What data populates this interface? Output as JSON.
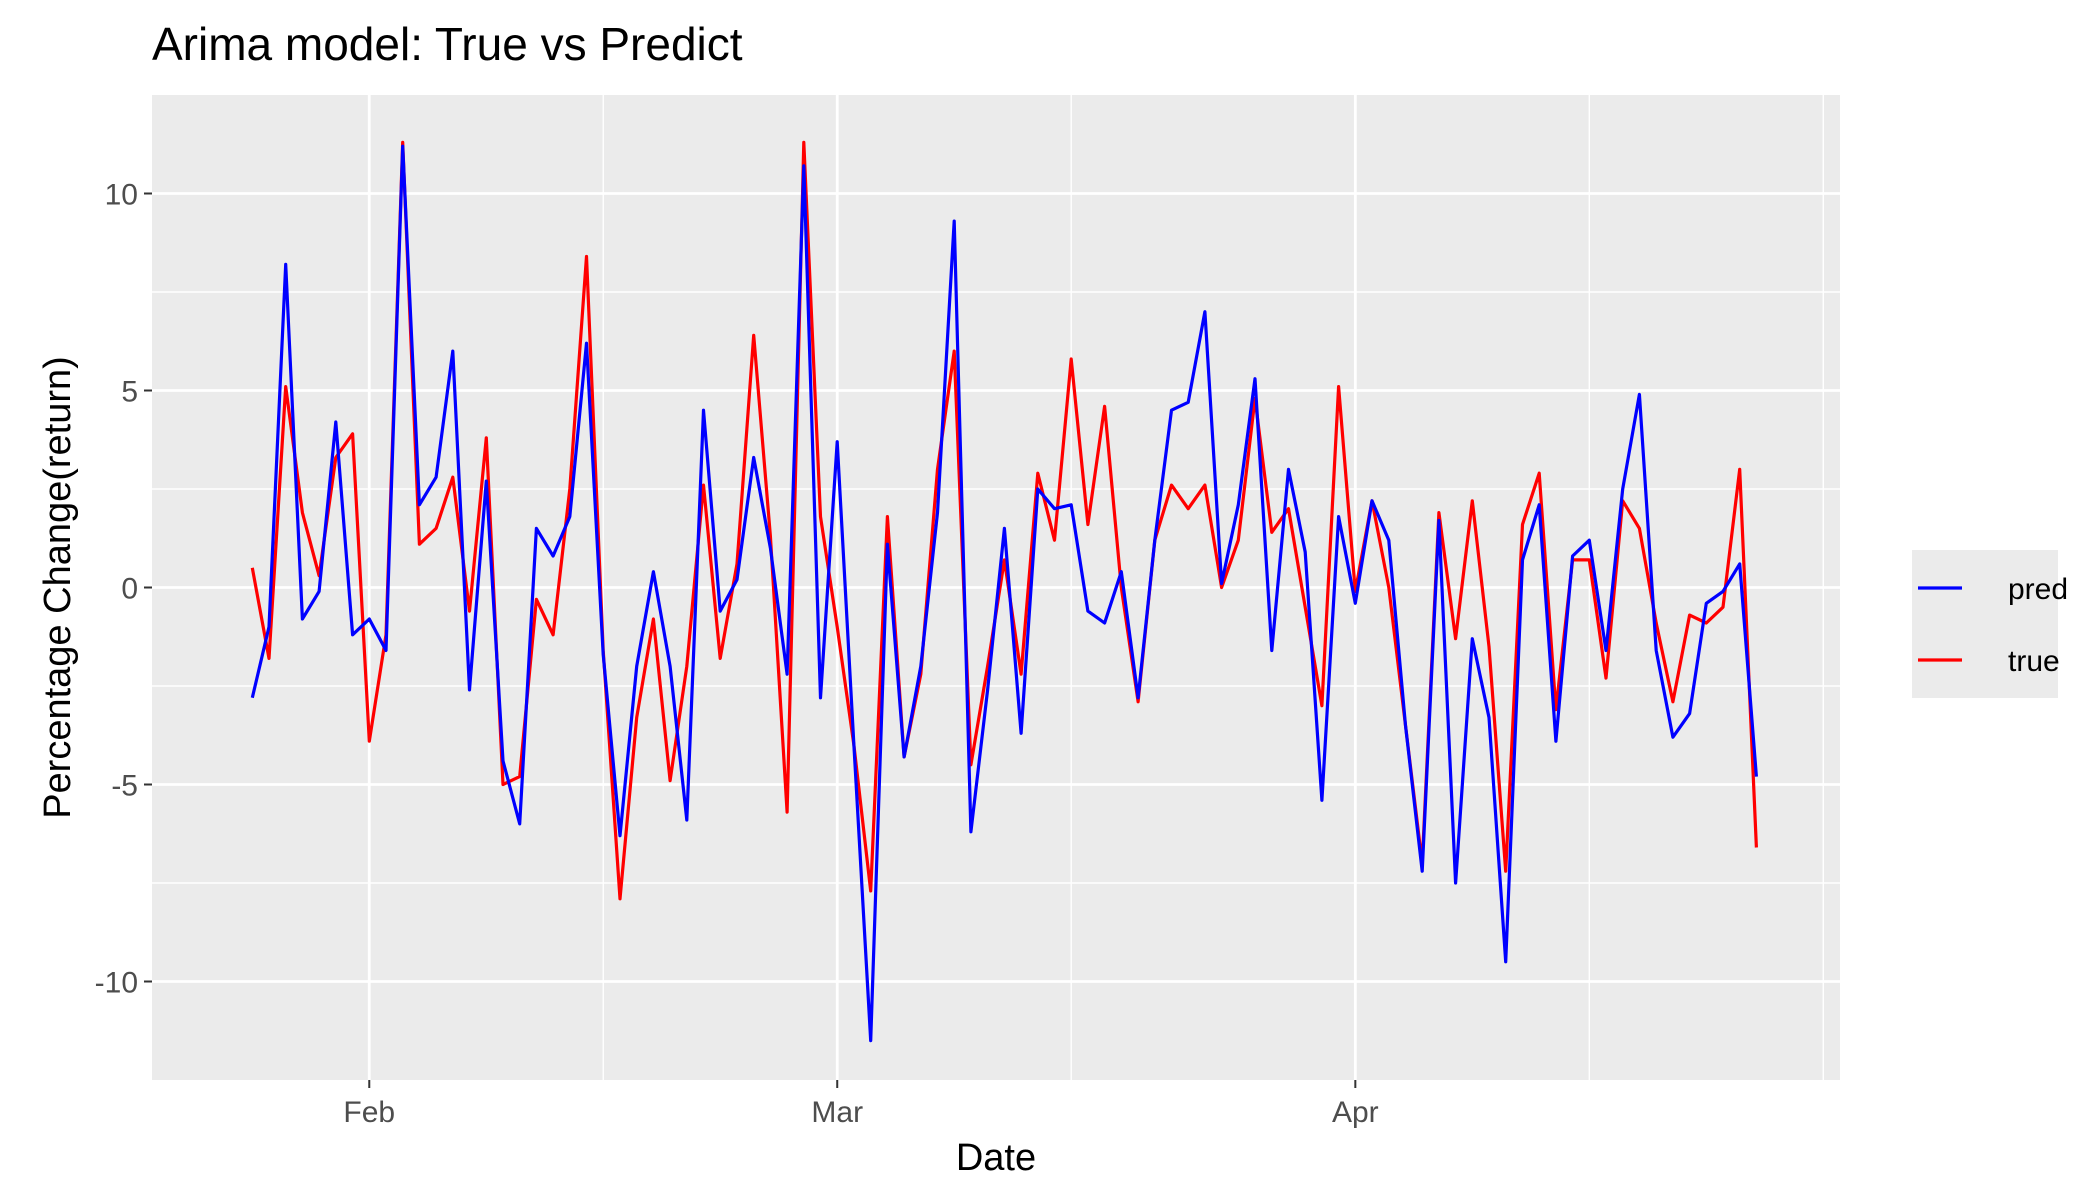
{
  "chart_data": {
    "type": "line",
    "title": "Arima model: True vs Predict",
    "xlabel": "Date",
    "ylabel": "Percentage Change(return)",
    "x_start_date": "2023-01-25",
    "x_step_days": 1,
    "xlim": [
      "2023-01-19",
      "2023-04-30"
    ],
    "ylim": [
      -12.5,
      12.5
    ],
    "x_ticks": [
      {
        "date": "2023-02-01",
        "label": "Feb"
      },
      {
        "date": "2023-03-01",
        "label": "Mar"
      },
      {
        "date": "2023-04-01",
        "label": "Apr"
      }
    ],
    "x_minor_ticks": [
      "2023-02-15",
      "2023-03-15",
      "2023-04-15",
      "2023-04-29"
    ],
    "y_ticks": [
      10,
      5,
      0,
      -5,
      -10
    ],
    "y_tick_labels": [
      "10",
      "5",
      "0",
      "-5",
      "-10"
    ],
    "y_minor_ticks": [
      7.5,
      2.5,
      -2.5,
      -7.5
    ],
    "grid": true,
    "legend_position": "right",
    "series": [
      {
        "name": "pred",
        "color": "#0000ff",
        "values": [
          -2.8,
          -1.0,
          8.2,
          -0.8,
          -0.1,
          4.2,
          -1.2,
          -0.8,
          -1.6,
          11.2,
          2.1,
          2.8,
          6.0,
          -2.6,
          2.7,
          -4.4,
          -6.0,
          1.5,
          0.8,
          1.8,
          6.2,
          -1.7,
          -6.3,
          -2.0,
          0.4,
          -2.0,
          -5.9,
          4.5,
          -0.6,
          0.2,
          3.3,
          1.0,
          -2.2,
          10.7,
          -2.8,
          3.7,
          -4.0,
          -11.5,
          1.1,
          -4.3,
          -2.0,
          1.9,
          9.3,
          -6.2,
          -2.6,
          1.5,
          -3.7,
          2.5,
          2.0,
          2.1,
          -0.6,
          -0.9,
          0.4,
          -2.8,
          1.2,
          4.5,
          4.7,
          7.0,
          0.1,
          2.1,
          5.3,
          -1.6,
          3.0,
          0.9,
          -5.4,
          1.8,
          -0.4,
          2.2,
          1.2,
          -3.5,
          -7.2,
          1.7,
          -7.5,
          -1.3,
          -3.3,
          -9.5,
          0.7,
          2.1,
          -3.9,
          0.8,
          1.2,
          -1.6,
          2.5,
          4.9,
          -1.6,
          -3.8,
          -3.2,
          -0.4,
          -0.1,
          0.6,
          -4.8
        ]
      },
      {
        "name": "true",
        "color": "#ff0000",
        "values": [
          0.5,
          -1.8,
          5.1,
          1.9,
          0.3,
          3.3,
          3.9,
          -3.9,
          -1.2,
          11.3,
          1.1,
          1.5,
          2.8,
          -0.6,
          3.8,
          -5.0,
          -4.8,
          -0.3,
          -1.2,
          2.5,
          8.4,
          -1.6,
          -7.9,
          -3.3,
          -0.8,
          -4.9,
          -2.0,
          2.6,
          -1.8,
          0.6,
          6.4,
          1.3,
          -5.7,
          11.3,
          1.8,
          -1.0,
          -4.0,
          -7.7,
          1.8,
          -4.3,
          -2.2,
          3.0,
          6.0,
          -4.5,
          -2.0,
          0.7,
          -2.2,
          2.9,
          1.2,
          5.8,
          1.6,
          4.6,
          0.0,
          -2.9,
          1.2,
          2.6,
          2.0,
          2.6,
          0.0,
          1.2,
          4.8,
          1.4,
          2.0,
          -0.5,
          -3.0,
          5.1,
          -0.1,
          2.2,
          0.0,
          -3.5,
          -7.0,
          1.9,
          -1.3,
          2.2,
          -1.5,
          -7.2,
          1.6,
          2.9,
          -3.1,
          0.7,
          0.7,
          -2.3,
          2.2,
          1.5,
          -0.9,
          -2.9,
          -0.7,
          -0.9,
          -0.5,
          3.0,
          -6.6
        ]
      }
    ]
  }
}
